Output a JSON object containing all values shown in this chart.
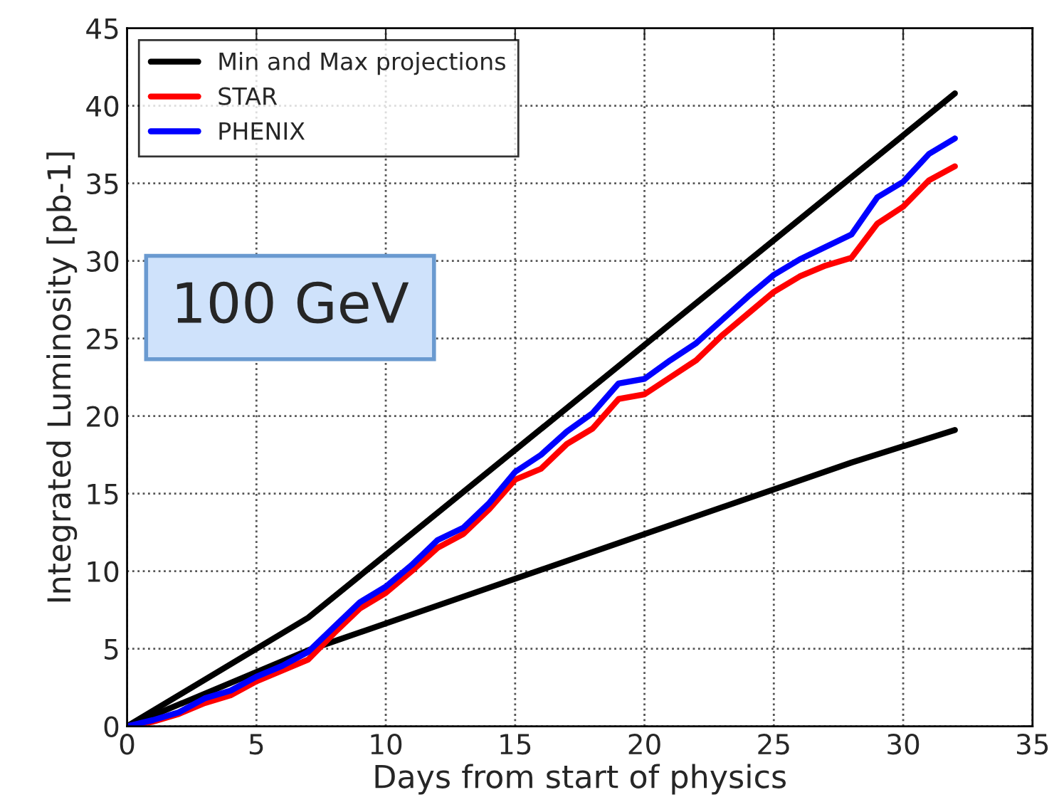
{
  "chart_data": {
    "type": "line",
    "xlabel": "Days from start of physics",
    "ylabel": "Integrated Luminosity [pb-1]",
    "annotations": [
      "100 GeV"
    ],
    "xlim": [
      0,
      35
    ],
    "xticks": [
      0,
      5,
      10,
      15,
      20,
      25,
      30,
      35
    ],
    "ylim": [
      0,
      45
    ],
    "yticks": [
      0,
      5,
      10,
      15,
      20,
      25,
      30,
      35,
      40,
      45
    ],
    "grid": true,
    "legend": "top left",
    "marker": "none",
    "line_style": "solid",
    "series": [
      {
        "name": "Min and Max projections",
        "color": "#000000",
        "x": [
          0,
          7,
          32
        ],
        "values": [
          0,
          7,
          40.8
        ]
      },
      {
        "color": "#000000",
        "x": [
          0,
          7,
          28,
          32
        ],
        "values": [
          0,
          4.9,
          17,
          19.1
        ]
      },
      {
        "name": "STAR",
        "color": "#ff0000",
        "x": [
          0,
          1,
          2,
          3,
          4,
          5,
          6,
          7,
          8,
          9,
          10,
          11,
          12,
          13,
          14,
          15,
          16,
          17,
          18,
          19,
          20,
          21,
          22,
          23,
          24,
          25,
          26,
          27,
          28,
          29,
          30,
          31,
          32
        ],
        "values": [
          0,
          0.3,
          0.8,
          1.5,
          2.0,
          2.9,
          3.6,
          4.3,
          6.0,
          7.6,
          8.6,
          10,
          11.5,
          12.4,
          14,
          15.9,
          16.6,
          18.2,
          19.2,
          21.1,
          21.4,
          22.5,
          23.6,
          25.2,
          26.6,
          28,
          29,
          29.7,
          30.2,
          32.4,
          33.5,
          35.2,
          36.1
        ]
      },
      {
        "name": "PHENIX",
        "color": "#0000ff",
        "x": [
          0,
          1,
          2,
          3,
          4,
          5,
          6,
          7,
          8,
          9,
          10,
          11,
          12,
          13,
          14,
          15,
          16,
          17,
          18,
          19,
          20,
          21,
          22,
          23,
          24,
          25,
          26,
          27,
          28,
          29,
          30,
          31,
          32
        ],
        "values": [
          0,
          0.4,
          0.9,
          1.8,
          2.3,
          3.2,
          3.9,
          4.8,
          6.4,
          8.0,
          9.0,
          10.4,
          12,
          12.8,
          14.4,
          16.4,
          17.5,
          19,
          20.2,
          22.1,
          22.4,
          23.6,
          24.7,
          26.2,
          27.7,
          29.1,
          30.1,
          30.9,
          31.7,
          34.1,
          35.1,
          36.9,
          37.9
        ]
      }
    ]
  }
}
